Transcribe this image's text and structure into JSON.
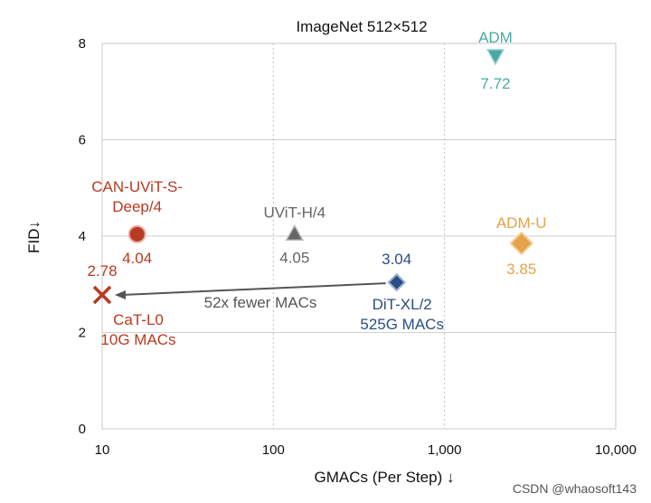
{
  "chart_data": {
    "type": "scatter",
    "title": "ImageNet 512×512",
    "xlabel": "GMACs (Per Step) ↓",
    "ylabel": "FID↓",
    "xscale": "log",
    "xlim": [
      10,
      10000
    ],
    "ylim": [
      0,
      8
    ],
    "xticks": [
      10,
      100,
      1000,
      10000
    ],
    "xtick_labels": [
      "10",
      "100",
      "1,000",
      "10,000"
    ],
    "yticks": [
      0,
      2,
      4,
      6,
      8
    ],
    "ytick_labels": [
      "0",
      "2",
      "4",
      "6",
      "8"
    ],
    "points": [
      {
        "name": "CAN-UViT-S-Deep/4",
        "label_lines": [
          "CAN-UViT-S-",
          "Deep/4"
        ],
        "value_label": "4.04",
        "x": 16,
        "y": 4.04,
        "marker": "circle",
        "color": "#b83a22"
      },
      {
        "name": "UViT-H/4",
        "label_lines": [
          "UViT-H/4"
        ],
        "value_label": "4.05",
        "x": 133,
        "y": 4.05,
        "marker": "triangle-up",
        "color": "#666666"
      },
      {
        "name": "DiT-XL/2",
        "label_lines": [
          "DiT-XL/2",
          "525G MACs"
        ],
        "value_label": "3.04",
        "x": 525,
        "y": 3.04,
        "marker": "diamond",
        "color": "#2a4f82"
      },
      {
        "name": "ADM-U",
        "label_lines": [
          "ADM-U"
        ],
        "value_label": "3.85",
        "x": 2813,
        "y": 3.85,
        "marker": "diamond",
        "color": "#e6a24a"
      },
      {
        "name": "ADM",
        "label_lines": [
          "ADM"
        ],
        "value_label": "7.72",
        "x": 1983,
        "y": 7.72,
        "marker": "triangle-down",
        "color": "#4aa9a4"
      },
      {
        "name": "CaT-L0",
        "label_lines": [
          "CaT-L0",
          "10G MACs"
        ],
        "value_label": "2.78",
        "x": 10,
        "y": 2.78,
        "marker": "x",
        "color": "#b83a22"
      }
    ],
    "annotation": {
      "text": "52x fewer MACs",
      "from": [
        525,
        3.04
      ],
      "to": [
        10,
        2.78
      ]
    },
    "grid": true
  },
  "watermark": "CSDN @whaosoft143"
}
